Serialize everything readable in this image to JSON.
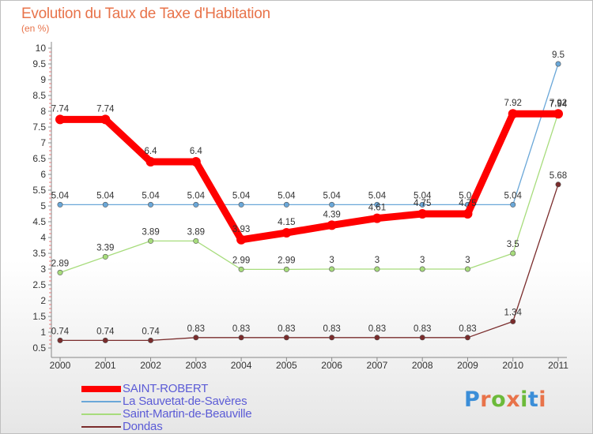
{
  "title": "Evolution du Taux de Taxe d'Habitation",
  "subtitle": "(en %)",
  "logo": {
    "text": "Proxiti",
    "colors": [
      "#3b8ed8",
      "#e8734a",
      "#6cba3a",
      "#e8734a",
      "#6cba3a",
      "#3b8ed8",
      "#e8734a"
    ]
  },
  "chart_data": {
    "type": "line",
    "x": [
      "2000",
      "2001",
      "2002",
      "2003",
      "2004",
      "2005",
      "2006",
      "2007",
      "2008",
      "2009",
      "2010",
      "2011"
    ],
    "yticks": [
      "0.5",
      "1",
      "1.5",
      "2",
      "2.5",
      "3",
      "3.5",
      "4",
      "4.5",
      "5",
      "5.5",
      "6",
      "6.5",
      "7",
      "7.5",
      "8",
      "8.5",
      "9",
      "9.5",
      "10"
    ],
    "ylim": [
      0.5,
      10
    ],
    "grid": false,
    "legend_position": "bottom-left",
    "series": [
      {
        "name": "SAINT-ROBERT",
        "color": "#ff0000",
        "width": 9,
        "values": [
          7.74,
          7.74,
          6.4,
          6.4,
          3.93,
          4.15,
          4.39,
          4.61,
          4.75,
          4.75,
          7.92,
          7.92
        ],
        "labels": [
          "7.74",
          "7.74",
          "6.4",
          "6.4",
          "3.93",
          "4.15",
          "4.39",
          "4.61",
          "4.75",
          "4.75",
          "7.92",
          "7.92"
        ]
      },
      {
        "name": "La Sauvetat-de-Savères",
        "color": "#6aa7d8",
        "width": 1.3,
        "values": [
          5.04,
          5.04,
          5.04,
          5.04,
          5.04,
          5.04,
          5.04,
          5.04,
          5.04,
          5.04,
          5.04,
          9.5
        ],
        "labels": [
          "5.04",
          "5.04",
          "5.04",
          "5.04",
          "5.04",
          "5.04",
          "5.04",
          "5.04",
          "5.04",
          "5.04",
          "5.04",
          "9.5"
        ]
      },
      {
        "name": "Saint-Martin-de-Beauville",
        "color": "#a7dc7c",
        "width": 1.3,
        "values": [
          2.89,
          3.39,
          3.89,
          3.89,
          2.99,
          2.99,
          3,
          3,
          3,
          3,
          3.5,
          7.94
        ],
        "labels": [
          "2.89",
          "3.39",
          "3.89",
          "3.89",
          "2.99",
          "2.99",
          "3",
          "3",
          "3",
          "3",
          "3.5",
          "7.94"
        ]
      },
      {
        "name": "Dondas",
        "color": "#7a2c2c",
        "width": 1.3,
        "values": [
          0.74,
          0.74,
          0.74,
          0.83,
          0.83,
          0.83,
          0.83,
          0.83,
          0.83,
          0.83,
          1.34,
          5.68
        ],
        "labels": [
          "0.74",
          "0.74",
          "0.74",
          "0.83",
          "0.83",
          "0.83",
          "0.83",
          "0.83",
          "0.83",
          "0.83",
          "1.34",
          "5.68"
        ]
      }
    ]
  }
}
